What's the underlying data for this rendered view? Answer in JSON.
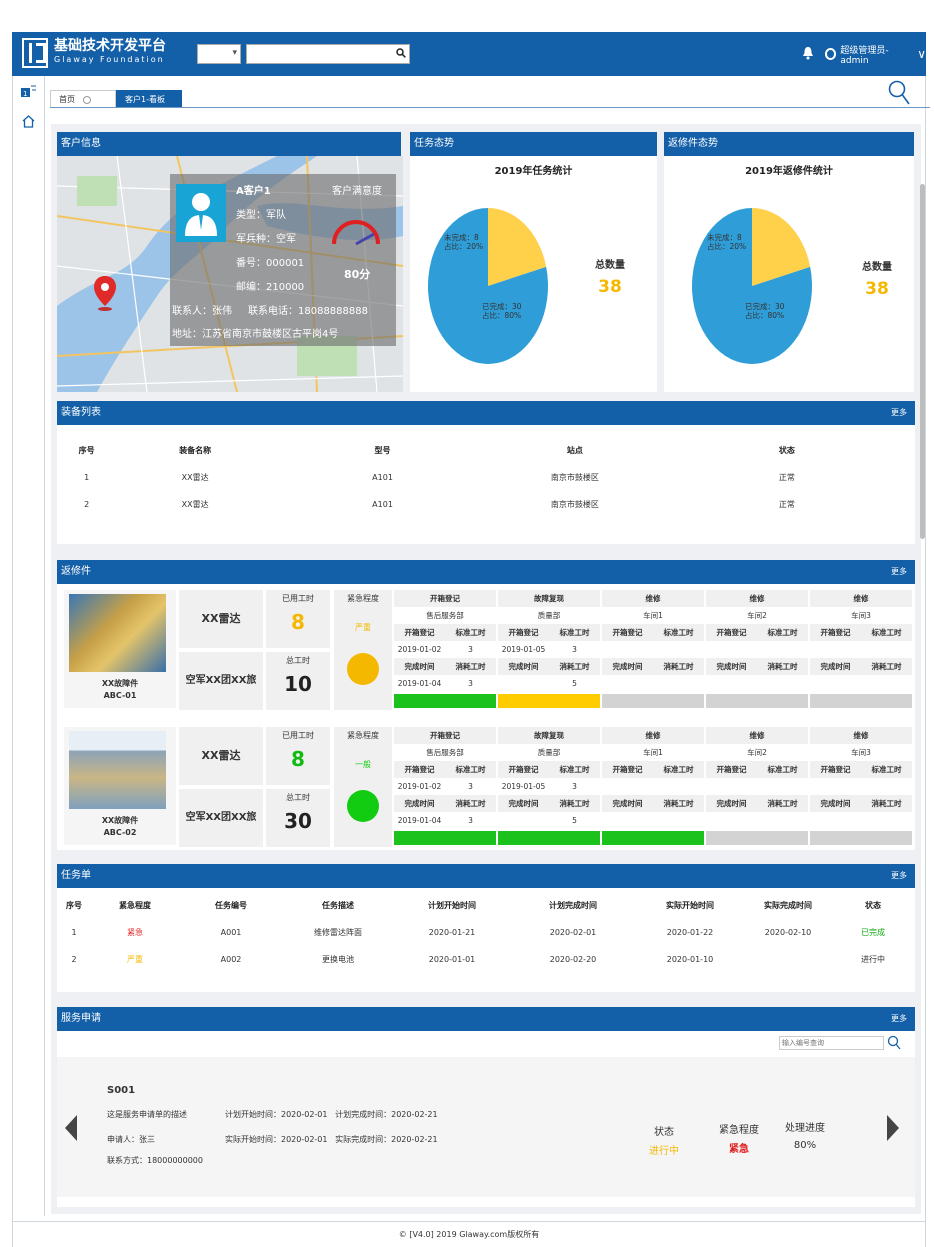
{
  "header": {
    "title": "基础技术开发平台",
    "subtitle": "Glaway  Foundation",
    "user": "超级管理员-admin"
  },
  "tabs": [
    {
      "label": "首页"
    },
    {
      "label": "客户1-看板"
    }
  ],
  "customer": {
    "panel_title": "客户信息",
    "name": "A客户1",
    "type": "类型：军队",
    "branch": "军兵种：空军",
    "number": "番号：000001",
    "postcode": "邮编：210000",
    "contact": "联系人：张伟",
    "phone": "联系电话：18088888888",
    "address": "地址：江苏省南京市鼓楼区古平岗4号",
    "satisfaction_label": "客户满意度",
    "satisfaction": "80分"
  },
  "task_stat": {
    "panel_title": "任务态势",
    "chart_title": "2019年任务统计",
    "total_label": "总数量",
    "total": "38",
    "unfinished_label": "未完成：8",
    "unfinished_pct": "占比：20%",
    "finished_label": "已完成：30",
    "finished_pct": "占比：80%"
  },
  "repair_stat": {
    "panel_title": "返修件态势",
    "chart_title": "2019年返修件统计",
    "total_label": "总数量",
    "total": "38",
    "unfinished_label": "未完成：8",
    "unfinished_pct": "占比：20%",
    "finished_label": "已完成：30",
    "finished_pct": "占比：80%"
  },
  "chart_data": [
    {
      "type": "pie",
      "title": "2019年任务统计",
      "categories": [
        "未完成",
        "已完成"
      ],
      "values": [
        8,
        30
      ],
      "colors": [
        "#ffd04a",
        "#2f9ed8"
      ]
    },
    {
      "type": "pie",
      "title": "2019年返修件统计",
      "categories": [
        "未完成",
        "已完成"
      ],
      "values": [
        8,
        30
      ],
      "colors": [
        "#ffd04a",
        "#2f9ed8"
      ]
    }
  ],
  "equipment": {
    "panel_title": "装备列表",
    "more": "更多",
    "headers": [
      "序号",
      "装备名称",
      "型号",
      "站点",
      "状态"
    ],
    "rows": [
      [
        "1",
        "XX雷达",
        "A101",
        "南京市鼓楼区",
        "正常"
      ],
      [
        "2",
        "XX雷达",
        "A101",
        "南京市鼓楼区",
        "正常"
      ]
    ]
  },
  "repairs": {
    "panel_title": "返修件",
    "more": "更多",
    "used_label": "已用工时",
    "total_label": "总工时",
    "urgency_label": "紧急程度",
    "items": [
      {
        "name": "XX故障件",
        "code": "ABC-01",
        "product": "XX雷达",
        "unit": "空军XX团XX旅",
        "used": "8",
        "total": "10",
        "urgency": "严重",
        "urgency_color": "#f5b800",
        "used_color": "#f5b800",
        "stages": [
          {
            "title": "开箱登记",
            "dept": "售后服务部",
            "start": "2019-01-02",
            "std": "3",
            "end": "2019-01-04",
            "cost": "3",
            "bar": "#1bc21b"
          },
          {
            "title": "故障复现",
            "dept": "质量部",
            "start": "2019-01-05",
            "std": "3",
            "end": "",
            "cost": "5",
            "bar": "#ffcc00"
          },
          {
            "title": "维修",
            "dept": "车间1",
            "start": "",
            "std": "",
            "end": "",
            "cost": "",
            "bar": "#d3d3d3"
          },
          {
            "title": "维修",
            "dept": "车间2",
            "start": "",
            "std": "",
            "end": "",
            "cost": "",
            "bar": "#d3d3d3"
          },
          {
            "title": "维修",
            "dept": "车间3",
            "start": "",
            "std": "",
            "end": "",
            "cost": "",
            "bar": "#d3d3d3"
          }
        ]
      },
      {
        "name": "XX故障件",
        "code": "ABC-02",
        "product": "XX雷达",
        "unit": "空军XX团XX旅",
        "used": "8",
        "total": "30",
        "urgency": "一般",
        "urgency_color": "#11cc11",
        "used_color": "#11bb11",
        "stages": [
          {
            "title": "开箱登记",
            "dept": "售后服务部",
            "start": "2019-01-02",
            "std": "3",
            "end": "2019-01-04",
            "cost": "3",
            "bar": "#1bc21b"
          },
          {
            "title": "故障复现",
            "dept": "质量部",
            "start": "2019-01-05",
            "std": "3",
            "end": "",
            "cost": "5",
            "bar": "#1bc21b"
          },
          {
            "title": "维修",
            "dept": "车间1",
            "start": "",
            "std": "",
            "end": "",
            "cost": "",
            "bar": "#1bc21b"
          },
          {
            "title": "维修",
            "dept": "车间2",
            "start": "",
            "std": "",
            "end": "",
            "cost": "",
            "bar": "#d3d3d3"
          },
          {
            "title": "维修",
            "dept": "车间3",
            "start": "",
            "std": "",
            "end": "",
            "cost": "",
            "bar": "#d3d3d3"
          }
        ]
      }
    ],
    "sub_labels": {
      "reg": "开箱登记",
      "std": "标准工时",
      "done": "完成时间",
      "cost": "消耗工时"
    }
  },
  "tasks": {
    "panel_title": "任务单",
    "more": "更多",
    "headers": [
      "序号",
      "紧急程度",
      "任务编号",
      "任务描述",
      "计划开始时间",
      "计划完成时间",
      "实际开始时间",
      "实际完成时间",
      "状态"
    ],
    "rows": [
      {
        "c": [
          "1",
          "紧急",
          "A001",
          "维修雷达阵面",
          "2020-01-21",
          "2020-02-01",
          "2020-01-22",
          "2020-02-10",
          "已完成"
        ],
        "urg_color": "#e02020",
        "st_color": "#11aa11"
      },
      {
        "c": [
          "2",
          "严重",
          "A002",
          "更换电池",
          "2020-01-01",
          "2020-02-20",
          "2020-01-10",
          "",
          "进行中"
        ],
        "urg_color": "#f5b800",
        "st_color": "#333333"
      }
    ]
  },
  "service": {
    "panel_title": "服务申请",
    "more": "更多",
    "search_placeholder": "输入编号查询",
    "id": "S001",
    "desc": "这是服务申请单的描述",
    "applicant": "申请人：张三",
    "contact": "联系方式：18000000000",
    "plan": "计划开始时间：2020-02-01   计划完成时间：2020-02-21",
    "actual": "实际开始时间：2020-02-01   实际完成时间：2020-02-21",
    "status_label": "状态",
    "status": "进行中",
    "urgency_label": "紧急程度",
    "urgency": "紧急",
    "progress_label": "处理进度",
    "progress": "80%"
  },
  "footer": "© [V4.0] 2019  Glaway.com版权所有"
}
